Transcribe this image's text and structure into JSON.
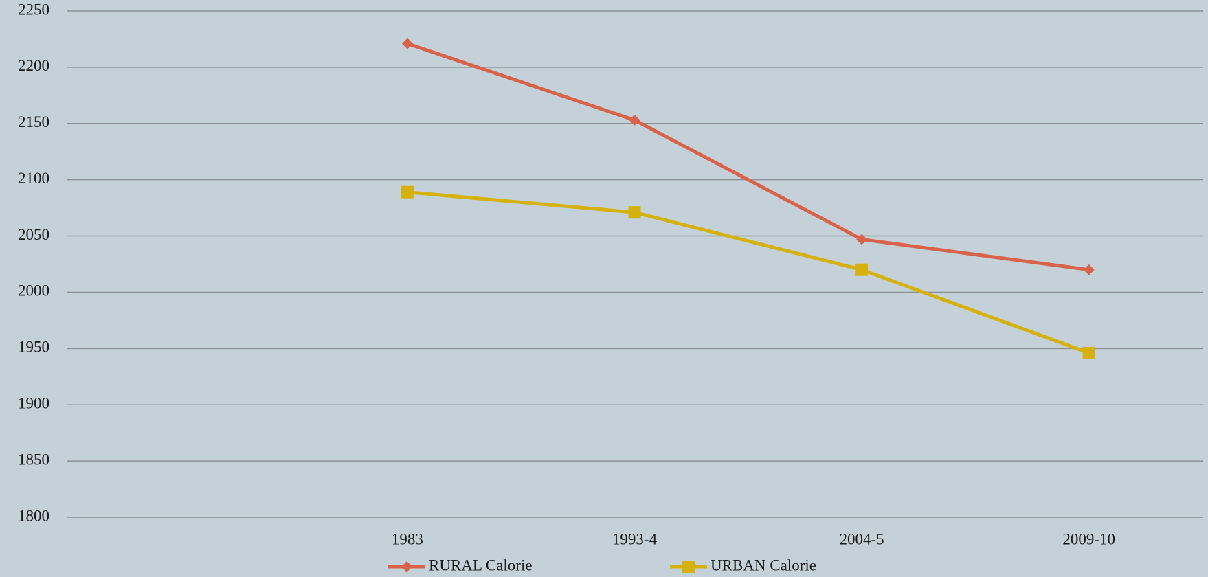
{
  "chart_data": {
    "type": "line",
    "categories": [
      null,
      "1983",
      "1993-4",
      "2004-5",
      "2009-10"
    ],
    "series": [
      {
        "name": "RURAL Calorie",
        "color": "#d9634a",
        "marker": "diamond",
        "values": [
          null,
          2221,
          2153,
          2047,
          2020
        ]
      },
      {
        "name": "URBAN Calorie",
        "color": "#d4b10c",
        "marker": "square",
        "values": [
          null,
          2089,
          2071,
          2020,
          1946
        ]
      }
    ],
    "ylim": [
      1800,
      2250
    ],
    "yticks": [
      1800,
      1850,
      1900,
      1950,
      2000,
      2050,
      2100,
      2150,
      2200,
      2250
    ],
    "grid": true,
    "legend": "bottom"
  }
}
